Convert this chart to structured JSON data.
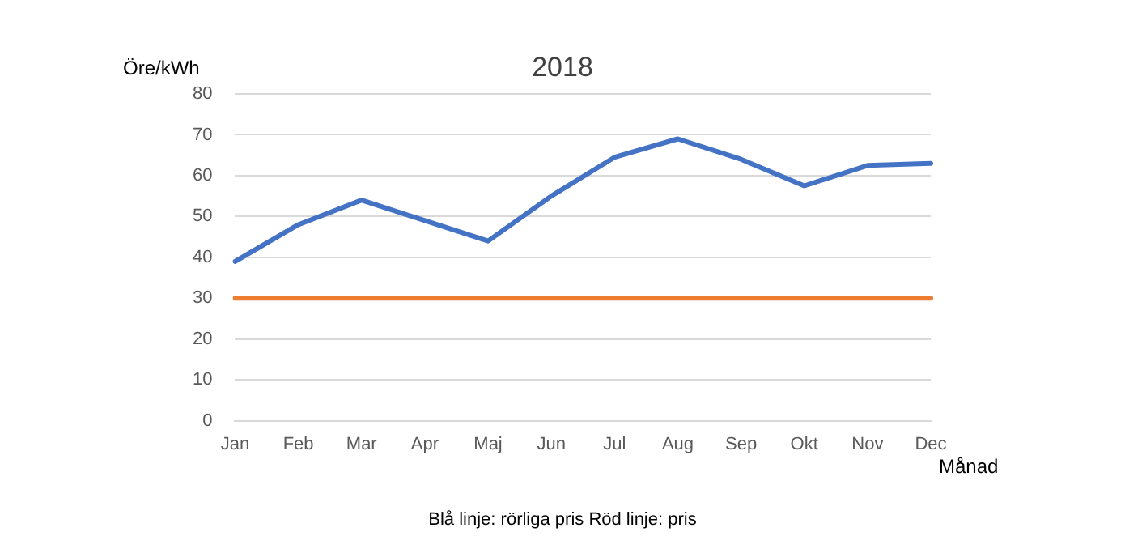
{
  "chart_data": {
    "type": "line",
    "title": "2018",
    "ylabel": "Öre/kWh",
    "xlabel": "Månad",
    "categories": [
      "Jan",
      "Feb",
      "Mar",
      "Apr",
      "Maj",
      "Jun",
      "Jul",
      "Aug",
      "Sep",
      "Okt",
      "Nov",
      "Dec"
    ],
    "series": [
      {
        "color": "#4472c4",
        "values": [
          39,
          48,
          54,
          49,
          44,
          55,
          64.5,
          69,
          64,
          57.5,
          62.5,
          63
        ]
      },
      {
        "color": "#ed7d31",
        "values": [
          30,
          30,
          30,
          30,
          30,
          30,
          30,
          30,
          30,
          30,
          30,
          30
        ]
      }
    ],
    "ylim": [
      0,
      80
    ],
    "yticks": [
      0,
      10,
      20,
      30,
      40,
      50,
      60,
      70,
      80
    ],
    "grid": "y",
    "legend": false,
    "marker": "none",
    "annotations": [
      "Blå linje: rörliga pris   Röd linje: pris"
    ]
  }
}
